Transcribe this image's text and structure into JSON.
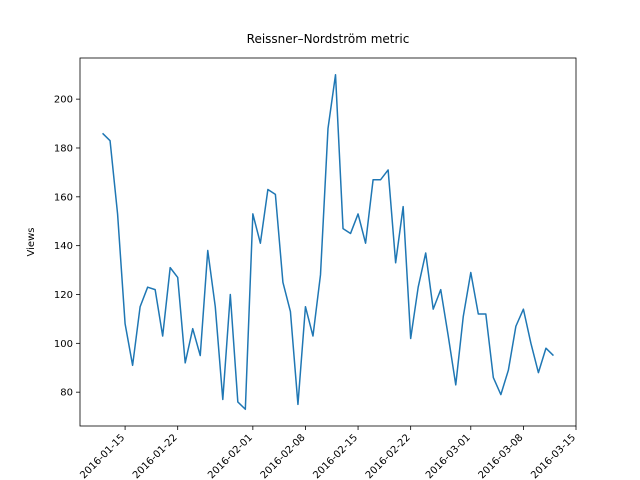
{
  "chart_data": {
    "type": "line",
    "title": "Reissner–Nordström metric",
    "ylabel": "Views",
    "x": [
      "2016-01-12",
      "2016-01-13",
      "2016-01-14",
      "2016-01-15",
      "2016-01-16",
      "2016-01-17",
      "2016-01-18",
      "2016-01-19",
      "2016-01-20",
      "2016-01-21",
      "2016-01-22",
      "2016-01-23",
      "2016-01-24",
      "2016-01-25",
      "2016-01-26",
      "2016-01-27",
      "2016-01-28",
      "2016-01-29",
      "2016-01-30",
      "2016-01-31",
      "2016-02-01",
      "2016-02-02",
      "2016-02-03",
      "2016-02-04",
      "2016-02-05",
      "2016-02-06",
      "2016-02-07",
      "2016-02-08",
      "2016-02-09",
      "2016-02-10",
      "2016-02-11",
      "2016-02-12",
      "2016-02-13",
      "2016-02-14",
      "2016-02-15",
      "2016-02-16",
      "2016-02-17",
      "2016-02-18",
      "2016-02-19",
      "2016-02-20",
      "2016-02-21",
      "2016-02-22",
      "2016-02-23",
      "2016-02-24",
      "2016-02-25",
      "2016-02-26",
      "2016-02-27",
      "2016-02-28",
      "2016-02-29",
      "2016-03-01",
      "2016-03-02",
      "2016-03-03",
      "2016-03-04",
      "2016-03-05",
      "2016-03-06",
      "2016-03-07",
      "2016-03-08",
      "2016-03-09",
      "2016-03-10",
      "2016-03-11",
      "2016-03-12"
    ],
    "series": [
      {
        "name": "Views",
        "color": "#1f77b4",
        "values": [
          186,
          183,
          153,
          108,
          91,
          115,
          123,
          122,
          103,
          131,
          127,
          92,
          106,
          95,
          138,
          115,
          77,
          120,
          76,
          73,
          153,
          141,
          163,
          161,
          125,
          113,
          75,
          115,
          103,
          128,
          188,
          210,
          147,
          145,
          153,
          141,
          167,
          167,
          171,
          133,
          156,
          102,
          123,
          137,
          114,
          122,
          103,
          83,
          111,
          129,
          112,
          112,
          86,
          79,
          89,
          107,
          114,
          100,
          88,
          98,
          95
        ]
      }
    ],
    "xlim": [
      "2016-01-09",
      "2016-03-15"
    ],
    "xticks": [
      "2016-01-15",
      "2016-01-22",
      "2016-02-01",
      "2016-02-08",
      "2016-02-15",
      "2016-02-22",
      "2016-03-01",
      "2016-03-08",
      "2016-03-15"
    ],
    "ylim": [
      66.15,
      216.85
    ],
    "yticks": [
      80,
      100,
      120,
      140,
      160,
      180,
      200
    ]
  }
}
